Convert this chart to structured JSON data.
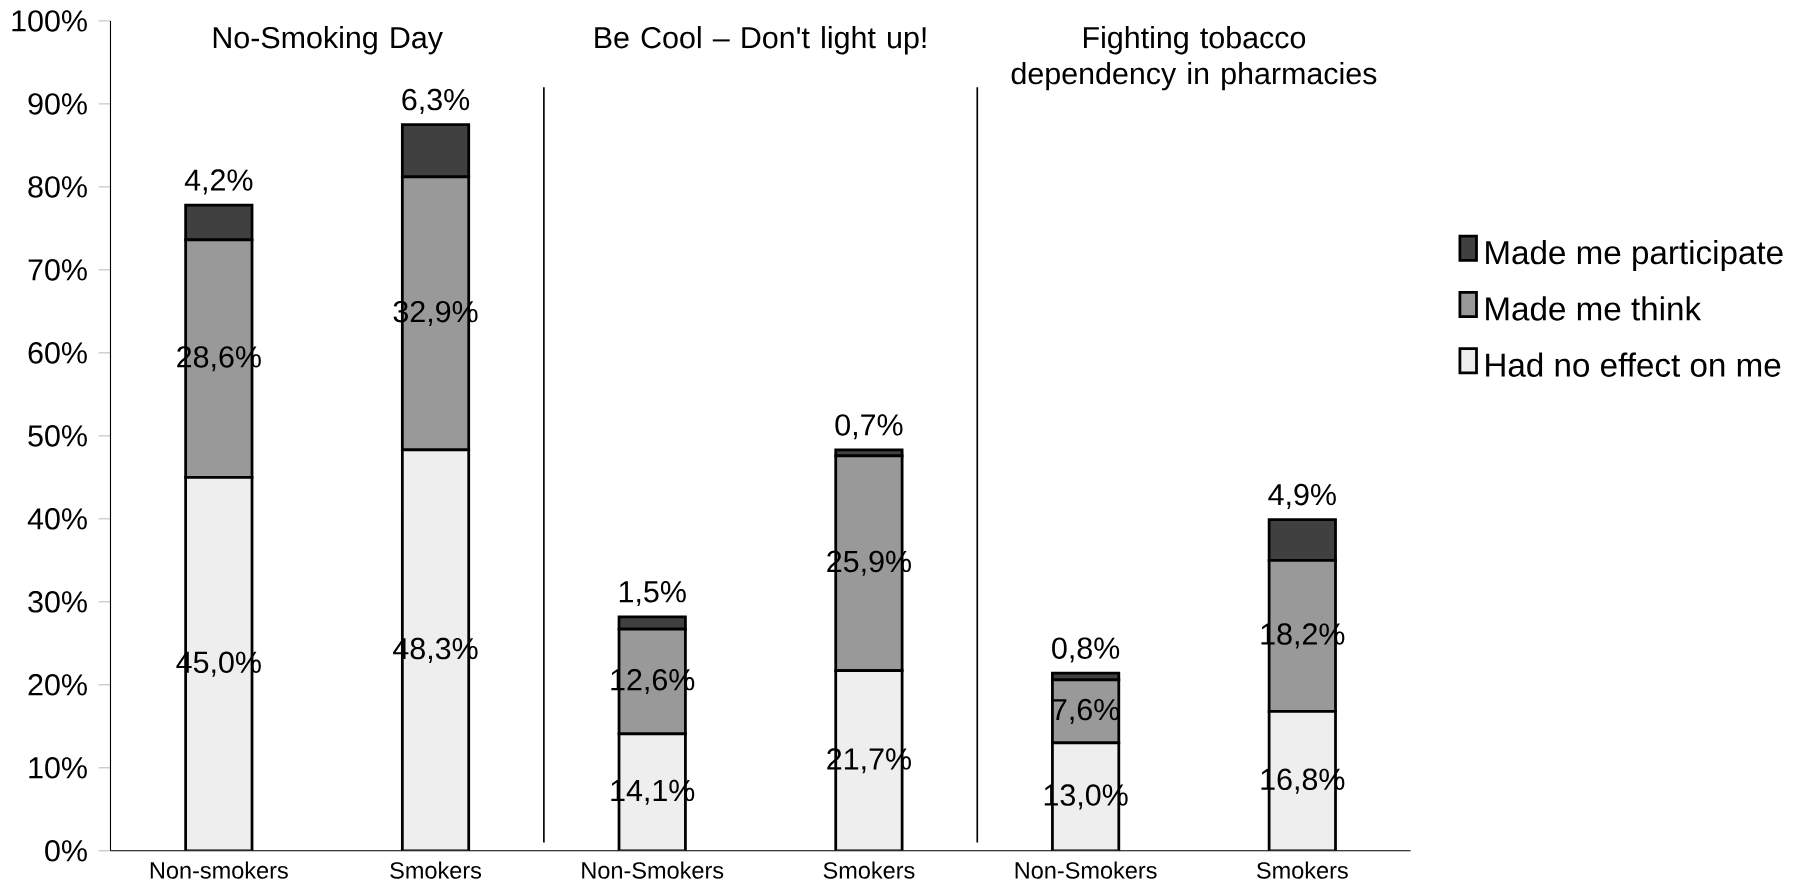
{
  "chart_data": {
    "type": "bar",
    "stacked": true,
    "categories": [
      "Non-smokers",
      "Smokers",
      "Non-Smokers",
      "Smokers",
      "Non-Smokers",
      "Smokers"
    ],
    "series": [
      {
        "name": "Had no effect on me",
        "color": "#eeeeee",
        "values": [
          45.0,
          48.3,
          14.1,
          21.7,
          13.0,
          16.8
        ],
        "value_labels": [
          "45,0%",
          "48,3%",
          "14,1%",
          "21,7%",
          "13,0%",
          "16,8%"
        ]
      },
      {
        "name": "Made me think",
        "color": "#999999",
        "values": [
          28.6,
          32.9,
          12.6,
          25.9,
          7.6,
          18.2
        ],
        "value_labels": [
          "28,6%",
          "32,9%",
          "12,6%",
          "25,9%",
          "7,6%",
          "18,2%"
        ]
      },
      {
        "name": "Made me participate",
        "color": "#404040",
        "values": [
          4.2,
          6.3,
          1.5,
          0.7,
          0.8,
          4.9
        ],
        "value_labels": [
          "4,2%",
          "6,3%",
          "1,5%",
          "0,7%",
          "0,8%",
          "4,9%"
        ]
      }
    ],
    "ylim": [
      0,
      100
    ],
    "yticks": [
      {
        "value": 0,
        "label": "0%"
      },
      {
        "value": 10,
        "label": "10%"
      },
      {
        "value": 20,
        "label": "20%"
      },
      {
        "value": 30,
        "label": "30%"
      },
      {
        "value": 40,
        "label": "40%"
      },
      {
        "value": 50,
        "label": "50%"
      },
      {
        "value": 60,
        "label": "60%"
      },
      {
        "value": 70,
        "label": "70%"
      },
      {
        "value": 80,
        "label": "80%"
      },
      {
        "value": 90,
        "label": "90%"
      },
      {
        "value": 100,
        "label": "100%"
      }
    ],
    "annotations": [
      "No-Smoking Day",
      "Be Cool – Don't light up!",
      "Fighting tobacco dependency in pharmacies"
    ],
    "grid": false,
    "legend": "right"
  }
}
